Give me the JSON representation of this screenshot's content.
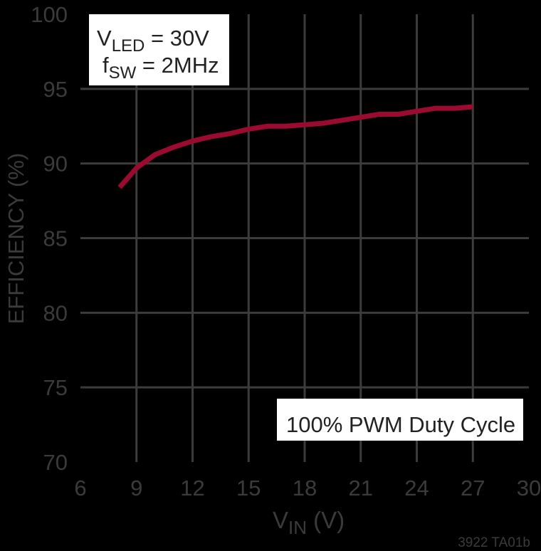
{
  "chart_data": {
    "type": "line",
    "title": "",
    "xlabel": "VIN (V)",
    "xlabel_main": "V",
    "xlabel_sub": "IN",
    "xlabel_unit": " (V)",
    "ylabel": "EFFICIENCY (%)",
    "xlim": [
      6,
      30
    ],
    "ylim": [
      70,
      100
    ],
    "x_ticks": [
      "6",
      "9",
      "12",
      "15",
      "18",
      "21",
      "24",
      "27",
      "30"
    ],
    "y_ticks": [
      "70",
      "75",
      "80",
      "85",
      "90",
      "95",
      "100"
    ],
    "grid": true,
    "series": [
      {
        "name": "Efficiency",
        "color": "#9b0a2f",
        "x": [
          8.1,
          9,
          10,
          11,
          12,
          13,
          14,
          15,
          16,
          17,
          18,
          19,
          20,
          21,
          22,
          23,
          24,
          25,
          26,
          27
        ],
        "y": [
          88.4,
          89.7,
          90.6,
          91.1,
          91.5,
          91.8,
          92.0,
          92.3,
          92.5,
          92.5,
          92.6,
          92.7,
          92.9,
          93.1,
          93.3,
          93.3,
          93.5,
          93.7,
          93.7,
          93.8
        ]
      }
    ],
    "annotations": [
      {
        "line1_main": "V",
        "line1_sub": "LED",
        "line1_rest": " = 30V",
        "line2_main": "f",
        "line2_sub": "SW",
        "line2_rest": " = 2MHz"
      },
      {
        "text": "100% PWM Duty Cycle"
      }
    ],
    "figure_id": "3922 TA01b"
  },
  "colors": {
    "background": "#000000",
    "grid": "#3c3c3c",
    "curve": "#9b0a2f",
    "text": "#3b3b3b"
  }
}
